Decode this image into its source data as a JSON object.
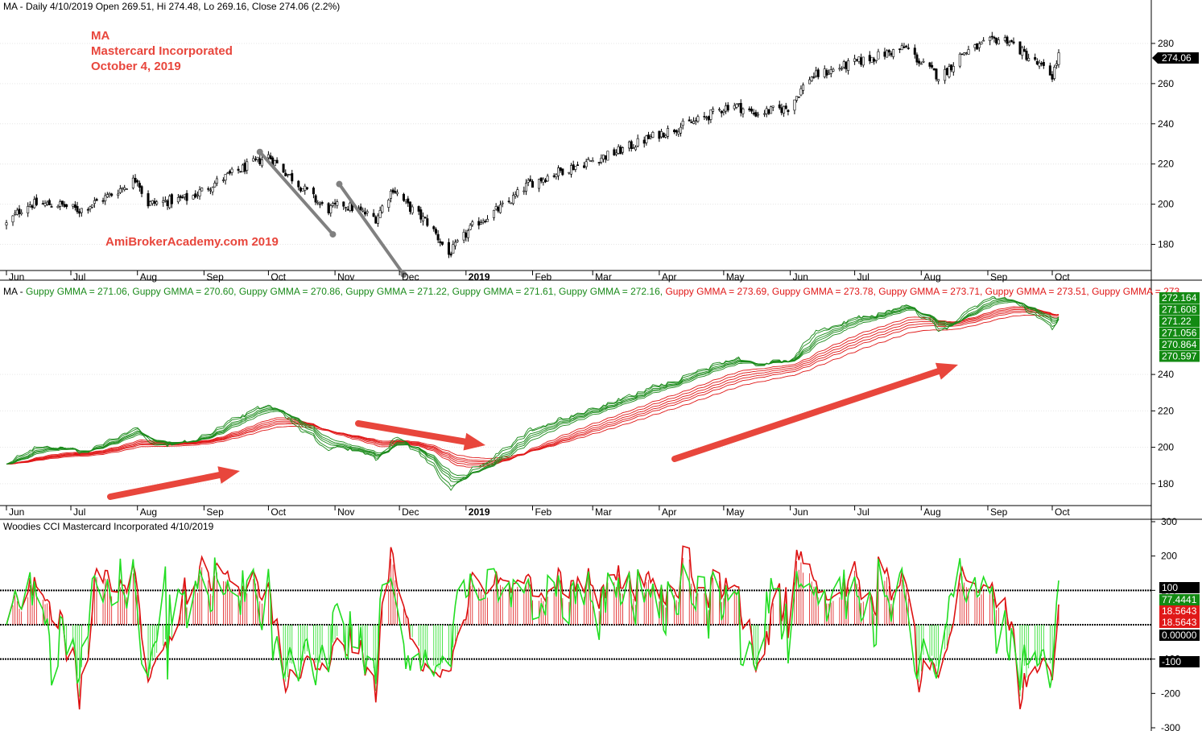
{
  "colors": {
    "background": "#ffffff",
    "candle_up": "#ffffff",
    "candle_down": "#000000",
    "gmma_short": "#1a8a1a",
    "gmma_long": "#e01818",
    "cci_green": "#22dd22",
    "cci_red": "#dd1111",
    "annotation_red": "#e8463c",
    "trendline_gray": "#808080",
    "badge_green": "#138a13",
    "badge_red": "#e01818",
    "badge_black": "#000000"
  },
  "annotations": {
    "symbol": "MA",
    "company": "Mastercard Incorporated",
    "date": "October 4, 2019",
    "watermark": "AmiBrokerAcademy.com 2019"
  },
  "price_panel": {
    "header": "MA - Daily 4/10/2019 Open 269.51, Hi 274.48, Lo 269.16, Close 274.06 (2.2%)",
    "last_price_label": "274.06",
    "y_ticks": [
      "280",
      "260",
      "240",
      "220",
      "200",
      "180"
    ]
  },
  "gmma_panel": {
    "header_prefix": "MA - ",
    "header_items": [
      {
        "text": "Guppy GMMA = 271.06,",
        "color": "green"
      },
      {
        "text": "Guppy GMMA = 270.60,",
        "color": "green"
      },
      {
        "text": "Guppy GMMA = 270.86,",
        "color": "green"
      },
      {
        "text": "Guppy GMMA = 271.22,",
        "color": "green"
      },
      {
        "text": "Guppy GMMA = 271.61,",
        "color": "green"
      },
      {
        "text": "Guppy GMMA = 272.16,",
        "color": "green"
      },
      {
        "text": "Guppy GMMA = 273.69,",
        "color": "red"
      },
      {
        "text": "Guppy GMMA = 273.78,",
        "color": "red"
      },
      {
        "text": "Guppy GMMA = 273.71,",
        "color": "red"
      },
      {
        "text": "Guppy GMMA = 273.51,",
        "color": "red"
      },
      {
        "text": "Guppy GMMA = 273",
        "color": "red"
      }
    ],
    "value_labels": [
      "272.164",
      "271.608",
      "271.22",
      "271.056",
      "270.864",
      "270.597"
    ],
    "y_ticks": [
      "240",
      "220",
      "200",
      "180"
    ]
  },
  "cci_panel": {
    "header": "Woodies CCI  Mastercard Incorporated 4/10/2019",
    "y_ticks": [
      "300",
      "200",
      "100",
      "-100",
      "-200",
      "-300"
    ],
    "badges": [
      {
        "text": "100",
        "color": "black"
      },
      {
        "text": "77.4441",
        "color": "green"
      },
      {
        "text": "18.5643",
        "color": "red"
      },
      {
        "text": "18.5643",
        "color": "red"
      },
      {
        "text": "0.00000",
        "color": "black"
      },
      {
        "text": "-100",
        "color": "black"
      }
    ]
  },
  "months": [
    "Jun",
    "Jul",
    "Aug",
    "Sep",
    "Oct",
    "Nov",
    "Dec",
    "2019",
    "Feb",
    "Mar",
    "Apr",
    "May",
    "Jun",
    "Jul",
    "Aug",
    "Sep",
    "Oct"
  ],
  "chart_data": [
    {
      "type": "candlestick",
      "title": "MA - Daily 4/10/2019 Open 269.51, Hi 274.48, Lo 269.16, Close 274.06 (2.2%)",
      "x_range": [
        "2018-06-01",
        "2019-10-04"
      ],
      "ylim": [
        167,
        296
      ],
      "price_anchors": [
        [
          "2018-06-01",
          190
        ],
        [
          "2018-06-10",
          200
        ],
        [
          "2018-06-25",
          200
        ],
        [
          "2018-07-05",
          197
        ],
        [
          "2018-07-20",
          205
        ],
        [
          "2018-08-01",
          213
        ],
        [
          "2018-08-05",
          200
        ],
        [
          "2018-08-25",
          203
        ],
        [
          "2018-09-10",
          213
        ],
        [
          "2018-10-01",
          224
        ],
        [
          "2018-10-10",
          215
        ],
        [
          "2018-10-20",
          205
        ],
        [
          "2018-10-28",
          197
        ],
        [
          "2018-11-05",
          200
        ],
        [
          "2018-11-20",
          193
        ],
        [
          "2018-11-28",
          208
        ],
        [
          "2018-12-05",
          199
        ],
        [
          "2018-12-15",
          190
        ],
        [
          "2018-12-24",
          175
        ],
        [
          "2019-01-05",
          190
        ],
        [
          "2019-01-20",
          200
        ],
        [
          "2019-01-30",
          210
        ],
        [
          "2019-02-15",
          217
        ],
        [
          "2019-03-10",
          225
        ],
        [
          "2019-04-01",
          235
        ],
        [
          "2019-04-20",
          242
        ],
        [
          "2019-05-05",
          250
        ],
        [
          "2019-05-15",
          245
        ],
        [
          "2019-05-31",
          248
        ],
        [
          "2019-06-10",
          263
        ],
        [
          "2019-06-30",
          270
        ],
        [
          "2019-07-25",
          278
        ],
        [
          "2019-08-01",
          270
        ],
        [
          "2019-08-10",
          263
        ],
        [
          "2019-08-20",
          275
        ],
        [
          "2019-09-05",
          282
        ],
        [
          "2019-09-10",
          282
        ],
        [
          "2019-09-20",
          273
        ],
        [
          "2019-10-01",
          264
        ],
        [
          "2019-10-04",
          274
        ]
      ]
    },
    {
      "type": "line",
      "title": "Guppy GMMA",
      "ylim": [
        168,
        290
      ],
      "series": [
        {
          "name": "Guppy GMMA",
          "values": [
            271.06
          ]
        },
        {
          "name": "Guppy GMMA",
          "values": [
            270.6
          ]
        },
        {
          "name": "Guppy GMMA",
          "values": [
            270.86
          ]
        },
        {
          "name": "Guppy GMMA",
          "values": [
            271.22
          ]
        },
        {
          "name": "Guppy GMMA",
          "values": [
            271.61
          ]
        },
        {
          "name": "Guppy GMMA",
          "values": [
            272.16
          ]
        },
        {
          "name": "Guppy GMMA",
          "values": [
            273.69
          ]
        },
        {
          "name": "Guppy GMMA",
          "values": [
            273.78
          ]
        },
        {
          "name": "Guppy GMMA",
          "values": [
            273.71
          ]
        },
        {
          "name": "Guppy GMMA",
          "values": [
            273.51
          ]
        },
        {
          "name": "Guppy GMMA",
          "values": [
            273
          ]
        }
      ]
    },
    {
      "type": "line",
      "title": "Woodies CCI  Mastercard Incorporated 4/10/2019",
      "ylim": [
        -300,
        300
      ],
      "levels": [
        100,
        0,
        -100
      ],
      "last_values": {
        "cci": 77.4441,
        "turbo": 18.5643
      }
    }
  ]
}
